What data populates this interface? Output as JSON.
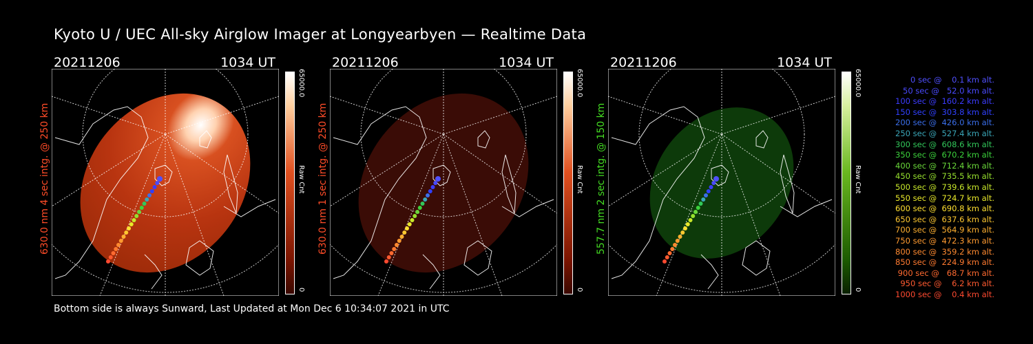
{
  "title": "Kyoto U / UEC All-sky Airglow Imager at Longyearbyen — Realtime Data",
  "footer": "Bottom side is always Sunward, Last Updated at Mon Dec  6 10:34:07 2021 in UTC",
  "panels": [
    {
      "date": "20211206",
      "time": "1034 UT",
      "ylabel": "630.0 nm 4 sec intg. @ 250 km",
      "cbar_max": "65000.0",
      "cbar_min": "0",
      "cbar_label": "Raw Cnt",
      "color": "#ff4c28",
      "cbar_top": "#ffffff",
      "cbar_bottom": "#5a0a00"
    },
    {
      "date": "20211206",
      "time": "1034 UT",
      "ylabel": "630.0 nm 1 sec intg. @ 250 km",
      "cbar_max": "65000.0",
      "cbar_min": "0",
      "cbar_label": "Raw Cnt",
      "color": "#ff4c28",
      "cbar_top": "#ffffff",
      "cbar_bottom": "#5a0a00"
    },
    {
      "date": "20211206",
      "time": "1034 UT",
      "ylabel": "557.7 nm 2 sec intg. @ 150 km",
      "cbar_max": "65000.0",
      "cbar_min": "0",
      "cbar_label": "Raw Cnt",
      "color": "#44dd22",
      "cbar_top": "#ffffff",
      "cbar_bottom": "#0a3a00"
    }
  ],
  "legend": [
    {
      "text": "   0 sec @    0.1 km alt.",
      "color": "#5050ff"
    },
    {
      "text": "  50 sec @   52.0 km alt.",
      "color": "#4a4aff"
    },
    {
      "text": " 100 sec @  160.2 km alt.",
      "color": "#3c3cff"
    },
    {
      "text": " 150 sec @  303.8 km alt.",
      "color": "#3040ff"
    },
    {
      "text": " 200 sec @  426.0 km alt.",
      "color": "#3a6eea"
    },
    {
      "text": " 250 sec @  527.4 km alt.",
      "color": "#3aa6b8"
    },
    {
      "text": " 300 sec @  608.6 km alt.",
      "color": "#32c85a"
    },
    {
      "text": " 350 sec @  670.2 km alt.",
      "color": "#3cd23c"
    },
    {
      "text": " 400 sec @  712.4 km alt.",
      "color": "#6ad83a"
    },
    {
      "text": " 450 sec @  735.5 km alt.",
      "color": "#96e02e"
    },
    {
      "text": " 500 sec @  739.6 km alt.",
      "color": "#c8e82a"
    },
    {
      "text": " 550 sec @  724.7 km alt.",
      "color": "#e8e82a"
    },
    {
      "text": " 600 sec @  690.8 km alt.",
      "color": "#ffe030"
    },
    {
      "text": " 650 sec @  637.6 km alt.",
      "color": "#ffc830"
    },
    {
      "text": " 700 sec @  564.9 km alt.",
      "color": "#ffb030"
    },
    {
      "text": " 750 sec @  472.3 km alt.",
      "color": "#ff9a30"
    },
    {
      "text": " 800 sec @  359.2 km alt.",
      "color": "#ff8a30"
    },
    {
      "text": " 850 sec @  224.9 km alt.",
      "color": "#ff7a30"
    },
    {
      "text": " 900 sec @   68.7 km alt.",
      "color": "#ff6a30"
    },
    {
      "text": " 950 sec @    6.2 km alt.",
      "color": "#ff5a30"
    },
    {
      "text": "1000 sec @    0.4 km alt.",
      "color": "#ff4a30"
    }
  ]
}
